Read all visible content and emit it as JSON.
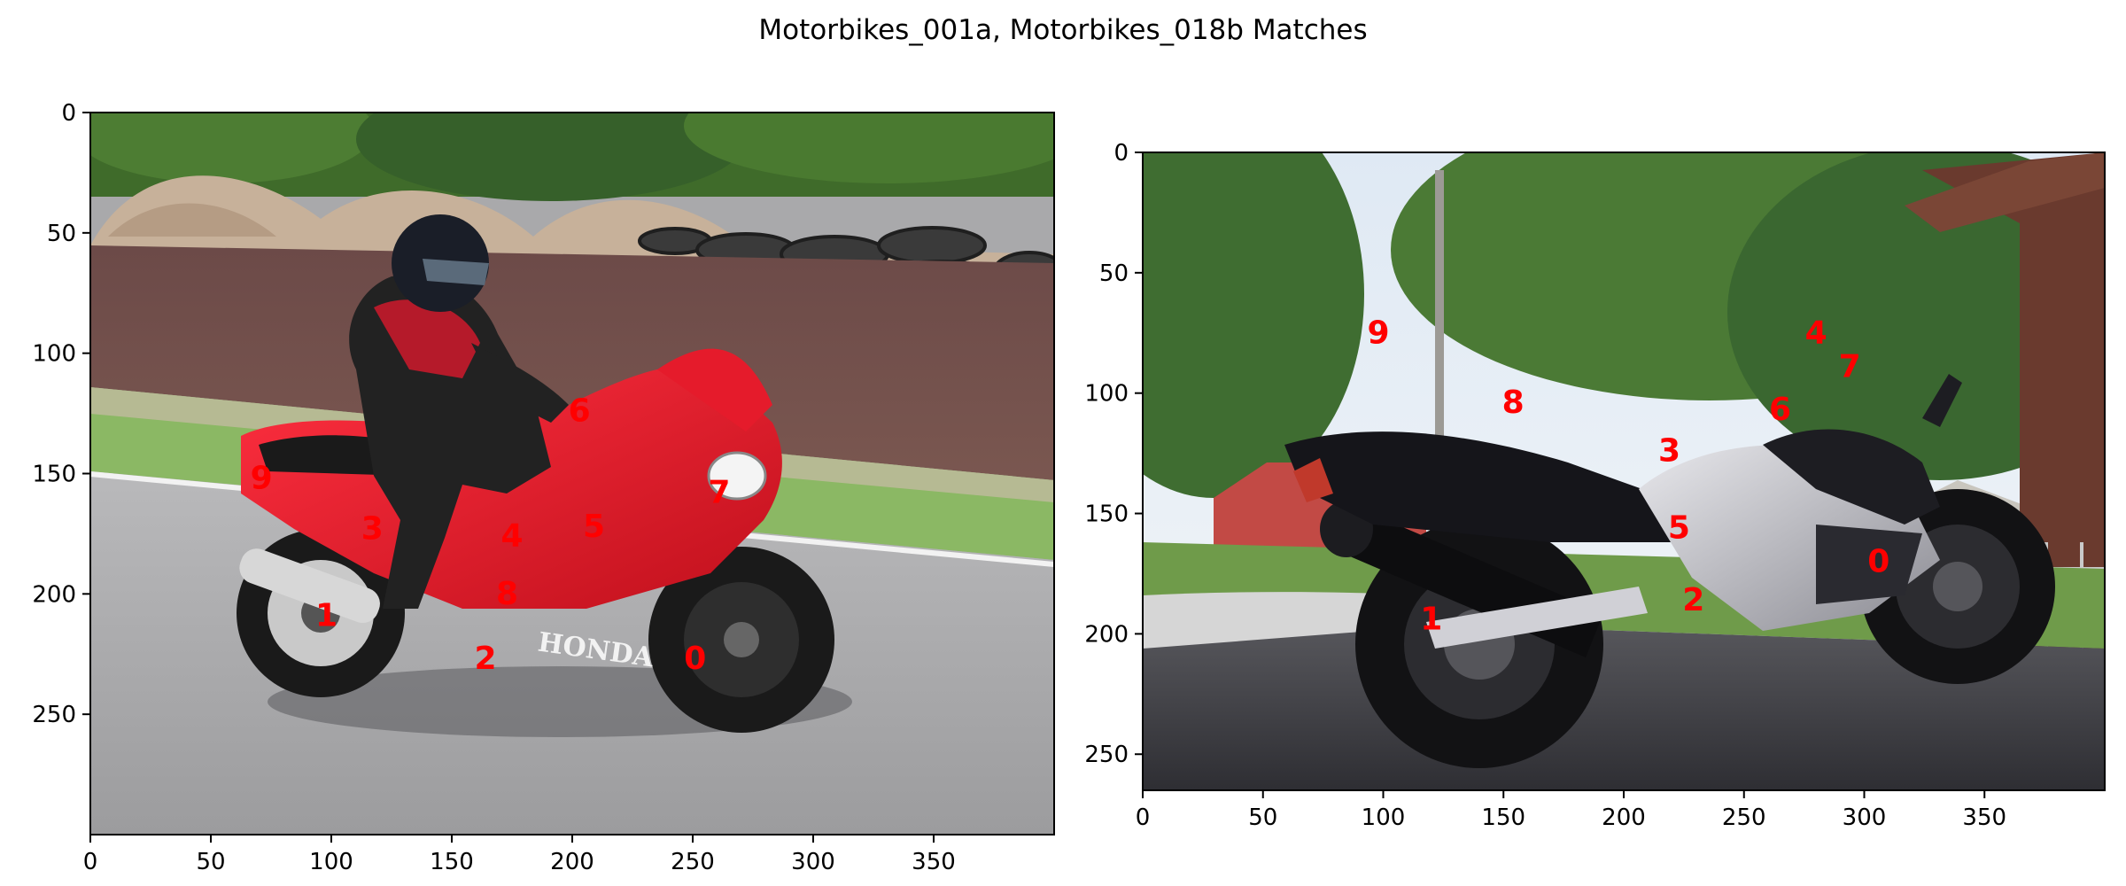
{
  "figure": {
    "title": "Motorbikes_001a, Motorbikes_018b Matches"
  },
  "colors": {
    "keypoint": "#ff0000",
    "axes": "#000000"
  },
  "chart_data": [
    {
      "type": "scatter",
      "image_name": "Motorbikes_001a",
      "xlim": [
        0,
        400
      ],
      "ylim": [
        300,
        0
      ],
      "xticks": [
        "0",
        "50",
        "100",
        "150",
        "200",
        "250",
        "300",
        "350"
      ],
      "yticks": [
        "0",
        "50",
        "100",
        "150",
        "200",
        "250"
      ],
      "points": [
        {
          "label": "0",
          "x": 251,
          "y": 227
        },
        {
          "label": "1",
          "x": 98,
          "y": 209
        },
        {
          "label": "2",
          "x": 164,
          "y": 227
        },
        {
          "label": "3",
          "x": 117,
          "y": 173
        },
        {
          "label": "4",
          "x": 175,
          "y": 176
        },
        {
          "label": "5",
          "x": 209,
          "y": 172
        },
        {
          "label": "6",
          "x": 203,
          "y": 124
        },
        {
          "label": "7",
          "x": 261,
          "y": 158
        },
        {
          "label": "8",
          "x": 173,
          "y": 200
        },
        {
          "label": "9",
          "x": 71,
          "y": 152
        }
      ]
    },
    {
      "type": "scatter",
      "image_name": "Motorbikes_018b",
      "xlim": [
        0,
        400
      ],
      "ylim": [
        265,
        0
      ],
      "xticks": [
        "0",
        "50",
        "100",
        "150",
        "200",
        "250",
        "300",
        "350"
      ],
      "yticks": [
        "0",
        "50",
        "100",
        "150",
        "200",
        "250"
      ],
      "points": [
        {
          "label": "0",
          "x": 306,
          "y": 170
        },
        {
          "label": "1",
          "x": 120,
          "y": 194
        },
        {
          "label": "2",
          "x": 229,
          "y": 186
        },
        {
          "label": "3",
          "x": 219,
          "y": 124
        },
        {
          "label": "4",
          "x": 280,
          "y": 75
        },
        {
          "label": "5",
          "x": 223,
          "y": 156
        },
        {
          "label": "6",
          "x": 265,
          "y": 107
        },
        {
          "label": "7",
          "x": 294,
          "y": 89
        },
        {
          "label": "8",
          "x": 154,
          "y": 104
        },
        {
          "label": "9",
          "x": 98,
          "y": 75
        }
      ]
    }
  ]
}
